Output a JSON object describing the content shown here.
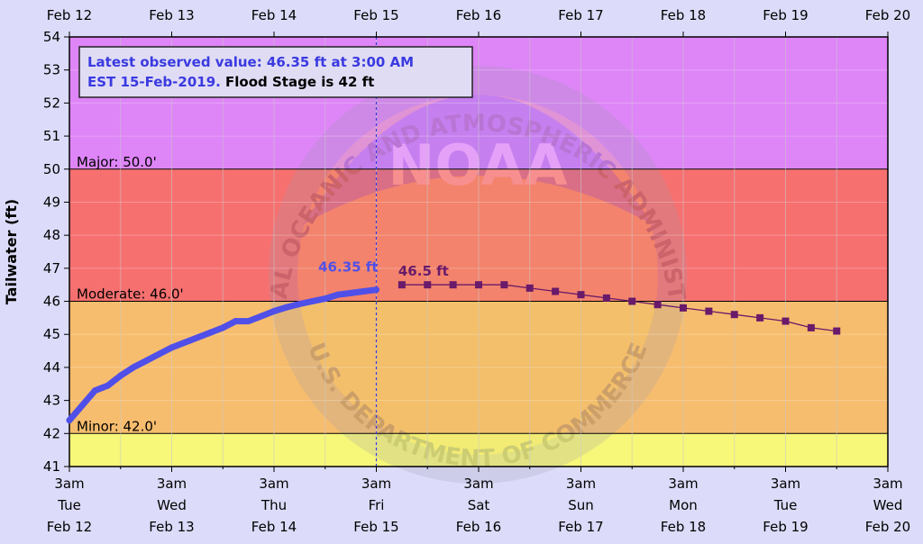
{
  "chart_data": {
    "type": "line",
    "ylabel": "Tailwater (ft)",
    "ylim": [
      41,
      54
    ],
    "yticks": [
      41,
      42,
      43,
      44,
      45,
      46,
      47,
      48,
      49,
      50,
      51,
      52,
      53,
      54
    ],
    "xlim": [
      "2019-02-12T03:00",
      "2019-02-20T03:00"
    ],
    "top_axis_labels": [
      "Feb 12",
      "Feb 13",
      "Feb 14",
      "Feb 15",
      "Feb 16",
      "Feb 17",
      "Feb 18",
      "Feb 19",
      "Feb 20"
    ],
    "bottom_axis_labels": [
      {
        "time": "3am",
        "day": "Tue",
        "date": "Feb 12"
      },
      {
        "time": "3am",
        "day": "Wed",
        "date": "Feb 13"
      },
      {
        "time": "3am",
        "day": "Thu",
        "date": "Feb 14"
      },
      {
        "time": "3am",
        "day": "Fri",
        "date": "Feb 15"
      },
      {
        "time": "3am",
        "day": "Sat",
        "date": "Feb 16"
      },
      {
        "time": "3am",
        "day": "Sun",
        "date": "Feb 17"
      },
      {
        "time": "3am",
        "day": "Mon",
        "date": "Feb 18"
      },
      {
        "time": "3am",
        "day": "Tue",
        "date": "Feb 19"
      },
      {
        "time": "3am",
        "day": "Wed",
        "date": "Feb 20"
      }
    ],
    "bands": [
      {
        "label": "",
        "from": 41,
        "to": 42,
        "color": "#f7f77a"
      },
      {
        "label": "Minor: 42.0'",
        "from": 42,
        "to": 46,
        "color": "#f7bd6e"
      },
      {
        "label": "Moderate: 46.0'",
        "from": 46,
        "to": 50,
        "color": "#f77070"
      },
      {
        "label": "Major: 50.0'",
        "from": 50,
        "to": 54,
        "color": "#de85f7"
      }
    ],
    "observed": {
      "color": "#5050e8",
      "points": [
        [
          "2019-02-12T03:00",
          42.4
        ],
        [
          "2019-02-12T06:00",
          42.85
        ],
        [
          "2019-02-12T09:00",
          43.3
        ],
        [
          "2019-02-12T12:00",
          43.45
        ],
        [
          "2019-02-12T15:00",
          43.75
        ],
        [
          "2019-02-12T18:00",
          44.0
        ],
        [
          "2019-02-12T21:00",
          44.2
        ],
        [
          "2019-02-13T00:00",
          44.4
        ],
        [
          "2019-02-13T03:00",
          44.6
        ],
        [
          "2019-02-13T06:00",
          44.75
        ],
        [
          "2019-02-13T09:00",
          44.9
        ],
        [
          "2019-02-13T12:00",
          45.05
        ],
        [
          "2019-02-13T15:00",
          45.2
        ],
        [
          "2019-02-13T18:00",
          45.4
        ],
        [
          "2019-02-13T21:00",
          45.4
        ],
        [
          "2019-02-14T00:00",
          45.55
        ],
        [
          "2019-02-14T03:00",
          45.7
        ],
        [
          "2019-02-14T06:00",
          45.82
        ],
        [
          "2019-02-14T09:00",
          45.92
        ],
        [
          "2019-02-14T12:00",
          46.0
        ],
        [
          "2019-02-14T15:00",
          46.08
        ],
        [
          "2019-02-14T18:00",
          46.2
        ],
        [
          "2019-02-14T21:00",
          46.25
        ],
        [
          "2019-02-15T00:00",
          46.3
        ],
        [
          "2019-02-15T03:00",
          46.35
        ]
      ]
    },
    "forecast": {
      "color": "#6a1a6a",
      "points": [
        [
          "2019-02-15T09:00",
          46.5
        ],
        [
          "2019-02-15T15:00",
          46.5
        ],
        [
          "2019-02-15T21:00",
          46.5
        ],
        [
          "2019-02-16T03:00",
          46.5
        ],
        [
          "2019-02-16T09:00",
          46.5
        ],
        [
          "2019-02-16T15:00",
          46.4
        ],
        [
          "2019-02-16T21:00",
          46.3
        ],
        [
          "2019-02-17T03:00",
          46.2
        ],
        [
          "2019-02-17T09:00",
          46.1
        ],
        [
          "2019-02-17T15:00",
          46.0
        ],
        [
          "2019-02-17T21:00",
          45.9
        ],
        [
          "2019-02-18T03:00",
          45.8
        ],
        [
          "2019-02-18T09:00",
          45.7
        ],
        [
          "2019-02-18T15:00",
          45.6
        ],
        [
          "2019-02-18T21:00",
          45.5
        ],
        [
          "2019-02-19T03:00",
          45.4
        ],
        [
          "2019-02-19T09:00",
          45.2
        ],
        [
          "2019-02-19T15:00",
          45.1
        ]
      ]
    },
    "current_time": "2019-02-15T03:00",
    "annotations": {
      "observed_label": "46.35 ft",
      "forecast_label": "46.5 ft"
    },
    "info_box": {
      "line1": "Latest observed value: 46.35 ft at 3:00 AM",
      "line2_prefix": "EST 15-Feb-2019.",
      "line2_suffix": "Flood Stage is 42 ft",
      "prefix_color": "#3a3ae0",
      "suffix_color": "#000000"
    },
    "watermark": {
      "text_top": "NATIONAL OCEANIC AND ATMOSPHERIC ADMINISTRATION",
      "text_bottom": "U.S. DEPARTMENT OF COMMERCE",
      "center": "NOAA"
    }
  }
}
